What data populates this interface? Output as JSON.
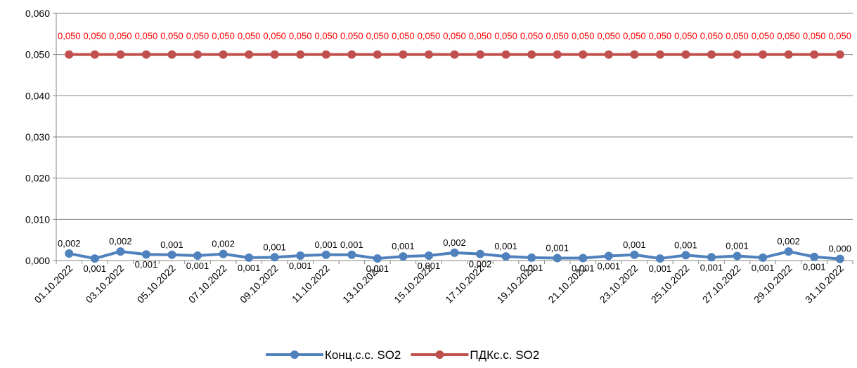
{
  "chart_data": {
    "type": "line",
    "title": "",
    "xlabel": "",
    "ylabel": "",
    "ylim": [
      0,
      0.06
    ],
    "yticks": [
      "0,000",
      "0,010",
      "0,020",
      "0,030",
      "0,040",
      "0,050",
      "0,060"
    ],
    "grid": "horizontal",
    "legend_position": "bottom",
    "x_tick_labels": [
      "01.10.2022",
      "03.10.2022",
      "05.10.2022",
      "07.10.2022",
      "09.10.2022",
      "11.10.2022",
      "13.10.2022",
      "15.10.2022",
      "17.10.2022",
      "19.10.2022",
      "21.10.2022",
      "23.10.2022",
      "25.10.2022",
      "27.10.2022",
      "29.10.2022",
      "31.10.2022"
    ],
    "x": [
      "01.10.2022",
      "02.10.2022",
      "03.10.2022",
      "04.10.2022",
      "05.10.2022",
      "06.10.2022",
      "07.10.2022",
      "08.10.2022",
      "09.10.2022",
      "10.10.2022",
      "11.10.2022",
      "12.10.2022",
      "13.10.2022",
      "14.10.2022",
      "15.10.2022",
      "16.10.2022",
      "17.10.2022",
      "18.10.2022",
      "19.10.2022",
      "20.10.2022",
      "21.10.2022",
      "22.10.2022",
      "23.10.2022",
      "24.10.2022",
      "25.10.2022",
      "26.10.2022",
      "27.10.2022",
      "28.10.2022",
      "29.10.2022",
      "30.10.2022",
      "31.10.2022"
    ],
    "series": [
      {
        "name": "Конц.с.с. SO2",
        "color": "#4F81BD",
        "values": [
          0.0017,
          0.0005,
          0.0022,
          0.0015,
          0.0014,
          0.0012,
          0.0016,
          0.0007,
          0.0008,
          0.0012,
          0.0014,
          0.0014,
          0.0005,
          0.001,
          0.0012,
          0.0019,
          0.0016,
          0.001,
          0.0007,
          0.0006,
          0.0006,
          0.0011,
          0.0014,
          0.0005,
          0.0013,
          0.0008,
          0.0011,
          0.0007,
          0.0022,
          0.0009,
          0.0004
        ],
        "labels": [
          "0,002",
          "0,001",
          "0,002",
          "0,001",
          "0,001",
          "0,001",
          "0,002",
          "0,001",
          "0,001",
          "0,001",
          "0,001",
          "0,001",
          "0,001",
          "0,001",
          "0,001",
          "0,002",
          "0,002",
          "0,001",
          "0,001",
          "0,001",
          "0,001",
          "0,001",
          "0,001",
          "0,001",
          "0,001",
          "0,001",
          "0,001",
          "0,001",
          "0,002",
          "0,001",
          "0,000"
        ],
        "label_pos": [
          "above",
          "below",
          "above",
          "below",
          "above",
          "below",
          "above",
          "below",
          "above",
          "below",
          "above",
          "above",
          "below",
          "above",
          "below",
          "above",
          "below",
          "above",
          "below",
          "above",
          "below",
          "below",
          "above",
          "below",
          "above",
          "below",
          "above",
          "below",
          "above",
          "below",
          "above"
        ]
      },
      {
        "name": "ПДКс.с. SO2",
        "color": "#C0504D",
        "label_color": "#FF0000",
        "values": [
          0.05,
          0.05,
          0.05,
          0.05,
          0.05,
          0.05,
          0.05,
          0.05,
          0.05,
          0.05,
          0.05,
          0.05,
          0.05,
          0.05,
          0.05,
          0.05,
          0.05,
          0.05,
          0.05,
          0.05,
          0.05,
          0.05,
          0.05,
          0.05,
          0.05,
          0.05,
          0.05,
          0.05,
          0.05,
          0.05,
          0.05
        ],
        "labels": [
          "0,050",
          "0,050",
          "0,050",
          "0,050",
          "0,050",
          "0,050",
          "0,050",
          "0,050",
          "0,050",
          "0,050",
          "0,050",
          "0,050",
          "0,050",
          "0,050",
          "0,050",
          "0,050",
          "0,050",
          "0,050",
          "0,050",
          "0,050",
          "0,050",
          "0,050",
          "0,050",
          "0,050",
          "0,050",
          "0,050",
          "0,050",
          "0,050",
          "0,050",
          "0,050",
          "0,050"
        ]
      }
    ]
  }
}
